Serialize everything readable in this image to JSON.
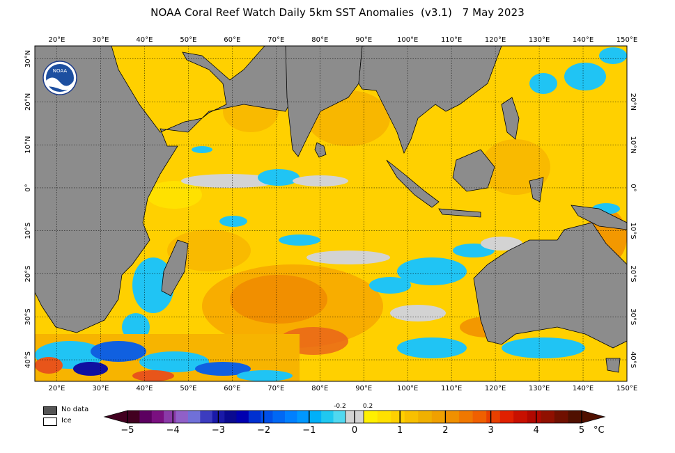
{
  "title": "NOAA Coral Reef Watch Daily 5km SST Anomalies  (v3.1)   7 May 2023",
  "logo_text": "NOAA",
  "map": {
    "lon_ticks": [
      "20°E",
      "30°E",
      "40°E",
      "50°E",
      "60°E",
      "70°E",
      "80°E",
      "90°E",
      "100°E",
      "110°E",
      "120°E",
      "130°E",
      "140°E",
      "150°E"
    ],
    "lat_ticks_left": [
      "30°N",
      "20°N",
      "10°N",
      "0°",
      "10°S",
      "20°S",
      "30°S",
      "40°S"
    ],
    "lat_ticks_right": [
      "20°N",
      "10°N",
      "0°",
      "10°S",
      "20°S",
      "30°S",
      "40°S"
    ],
    "colors": {
      "land": "#8c8c8c",
      "nodata": "#d3d3d3",
      "warm_low": "#ffe200",
      "warm_mid": "#f7b400",
      "warm_high": "#f08a00",
      "hot": "#e8551a",
      "cool": "#20c4f4",
      "cold": "#1060e0",
      "coldest": "#1010a0"
    }
  },
  "legend": {
    "nodata_label": "No data",
    "nodata_color": "#555555",
    "ice_label": "Ice",
    "ice_color": "#ffffff"
  },
  "colorbar": {
    "unit": "°C",
    "ticks": [
      "−5",
      "−4",
      "−3",
      "−2",
      "−1",
      "0",
      "1",
      "2",
      "3",
      "4",
      "5"
    ],
    "small_labels": [
      "-0.2",
      "0.2"
    ],
    "segments": [
      "#420020",
      "#5c0060",
      "#7a1080",
      "#8a3aa8",
      "#9060c8",
      "#7070d8",
      "#3c3cbf",
      "#1a1aa8",
      "#0a0a90",
      "#0000b0",
      "#0030d0",
      "#0050e8",
      "#0068f4",
      "#0080ff",
      "#0098ff",
      "#00b0f8",
      "#20c8f0",
      "#50d8f0",
      "#d3d3d3",
      "#fff000",
      "#ffe000",
      "#ffd000",
      "#f8c000",
      "#f0b000",
      "#f0a000",
      "#f09000",
      "#f07800",
      "#f06000",
      "#e84000",
      "#e02000",
      "#c81000",
      "#b00800",
      "#901000",
      "#701000",
      "#501000"
    ]
  }
}
